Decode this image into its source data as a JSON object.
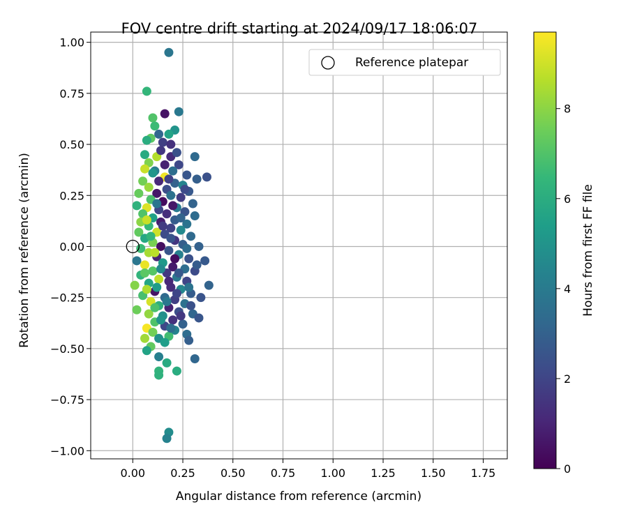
{
  "chart_data": {
    "type": "scatter",
    "title": "FOV centre drift starting at 2024/09/17 18:06:07",
    "xlabel": "Angular distance from reference (arcmin)",
    "ylabel": "Rotation from reference (arcmin)",
    "xlim": [
      -0.21,
      1.87
    ],
    "ylim": [
      -1.04,
      1.05
    ],
    "xticks": [
      0.0,
      0.25,
      0.5,
      0.75,
      1.0,
      1.25,
      1.5,
      1.75
    ],
    "xtick_labels": [
      "0.00",
      "0.25",
      "0.50",
      "0.75",
      "1.00",
      "1.25",
      "1.50",
      "1.75"
    ],
    "yticks": [
      -1.0,
      -0.75,
      -0.5,
      -0.25,
      0.0,
      0.25,
      0.5,
      0.75,
      1.0
    ],
    "ytick_labels": [
      "−1.00",
      "−0.75",
      "−0.50",
      "−0.25",
      "0.00",
      "0.25",
      "0.50",
      "0.75",
      "1.00"
    ],
    "grid": true,
    "legend": {
      "placement": "top-right",
      "entries": [
        {
          "label": "Reference platepar",
          "marker": "hollow-circle"
        }
      ]
    },
    "reference_point": {
      "x": 0.0,
      "y": 0.0
    },
    "colorbar": {
      "label": "Hours from first FF file",
      "colormap": "viridis",
      "range": [
        0,
        9.7
      ],
      "ticks": [
        0,
        2,
        4,
        6,
        8
      ],
      "tick_labels": [
        "0",
        "2",
        "4",
        "6",
        "8"
      ],
      "stops": [
        "#440154",
        "#482878",
        "#3e4a89",
        "#31688e",
        "#26828e",
        "#1f9e89",
        "#35b779",
        "#6ece58",
        "#b5de2b",
        "#fde725"
      ]
    },
    "series": [
      {
        "color_by": "hours",
        "points": [
          [
            0.18,
            0.95,
            3.8
          ],
          [
            0.07,
            0.76,
            6.4
          ],
          [
            0.16,
            0.65,
            0.5
          ],
          [
            0.23,
            0.66,
            3.9
          ],
          [
            0.1,
            0.63,
            7.0
          ],
          [
            0.11,
            0.59,
            6.6
          ],
          [
            0.21,
            0.57,
            5.0
          ],
          [
            0.13,
            0.55,
            3.2
          ],
          [
            0.18,
            0.55,
            5.6
          ],
          [
            0.09,
            0.53,
            7.2
          ],
          [
            0.07,
            0.52,
            6.0
          ],
          [
            0.15,
            0.51,
            1.8
          ],
          [
            0.19,
            0.5,
            1.4
          ],
          [
            0.31,
            0.44,
            3.3
          ],
          [
            0.06,
            0.45,
            5.9
          ],
          [
            0.12,
            0.44,
            8.6
          ],
          [
            0.19,
            0.44,
            1.2
          ],
          [
            0.08,
            0.41,
            7.8
          ],
          [
            0.16,
            0.4,
            0.9
          ],
          [
            0.23,
            0.4,
            2.1
          ],
          [
            0.06,
            0.38,
            8.9
          ],
          [
            0.11,
            0.37,
            4.1
          ],
          [
            0.2,
            0.37,
            3.5
          ],
          [
            0.27,
            0.35,
            2.6
          ],
          [
            0.37,
            0.34,
            2.4
          ],
          [
            0.16,
            0.34,
            9.5
          ],
          [
            0.32,
            0.33,
            2.9
          ],
          [
            0.05,
            0.32,
            7.6
          ],
          [
            0.13,
            0.32,
            1.1
          ],
          [
            0.21,
            0.31,
            3.0
          ],
          [
            0.25,
            0.3,
            4.4
          ],
          [
            0.08,
            0.29,
            8.2
          ],
          [
            0.17,
            0.28,
            2.3
          ],
          [
            0.28,
            0.27,
            2.7
          ],
          [
            0.03,
            0.26,
            7.4
          ],
          [
            0.12,
            0.26,
            0.6
          ],
          [
            0.19,
            0.25,
            3.6
          ],
          [
            0.24,
            0.24,
            1.7
          ],
          [
            0.09,
            0.23,
            6.9
          ],
          [
            0.15,
            0.22,
            0.3
          ],
          [
            0.3,
            0.21,
            3.1
          ],
          [
            0.02,
            0.2,
            6.2
          ],
          [
            0.07,
            0.19,
            9.2
          ],
          [
            0.22,
            0.19,
            4.0
          ],
          [
            0.13,
            0.18,
            2.0
          ],
          [
            0.26,
            0.17,
            2.5
          ],
          [
            0.05,
            0.16,
            7.0
          ],
          [
            0.17,
            0.16,
            1.3
          ],
          [
            0.31,
            0.15,
            3.4
          ],
          [
            0.1,
            0.14,
            5.5
          ],
          [
            0.21,
            0.13,
            2.8
          ],
          [
            0.04,
            0.12,
            8.0
          ],
          [
            0.14,
            0.12,
            0.8
          ],
          [
            0.27,
            0.11,
            3.7
          ],
          [
            0.08,
            0.1,
            6.5
          ],
          [
            0.19,
            0.09,
            1.9
          ],
          [
            0.24,
            0.08,
            4.6
          ],
          [
            0.03,
            0.07,
            7.3
          ],
          [
            0.12,
            0.07,
            9.0
          ],
          [
            0.16,
            0.06,
            2.2
          ],
          [
            0.29,
            0.05,
            3.3
          ],
          [
            0.06,
            0.04,
            5.8
          ],
          [
            0.21,
            0.03,
            1.5
          ],
          [
            0.1,
            0.02,
            7.7
          ],
          [
            0.25,
            0.01,
            2.9
          ],
          [
            0.14,
            0.0,
            0.4
          ],
          [
            0.33,
            0.0,
            3.0
          ],
          [
            0.04,
            -0.01,
            6.6
          ],
          [
            0.18,
            -0.02,
            2.6
          ],
          [
            0.08,
            -0.03,
            8.4
          ],
          [
            0.23,
            -0.04,
            4.2
          ],
          [
            0.12,
            -0.05,
            1.0
          ],
          [
            0.28,
            -0.06,
            2.4
          ],
          [
            0.02,
            -0.07,
            3.8
          ],
          [
            0.36,
            -0.07,
            2.7
          ],
          [
            0.15,
            -0.08,
            5.2
          ],
          [
            0.06,
            -0.09,
            9.4
          ],
          [
            0.2,
            -0.1,
            0.7
          ],
          [
            0.26,
            -0.11,
            3.5
          ],
          [
            0.1,
            -0.12,
            7.1
          ],
          [
            0.31,
            -0.12,
            2.2
          ],
          [
            0.17,
            -0.13,
            1.6
          ],
          [
            0.04,
            -0.14,
            6.3
          ],
          [
            0.22,
            -0.15,
            3.9
          ],
          [
            0.13,
            -0.16,
            8.8
          ],
          [
            0.27,
            -0.17,
            2.0
          ],
          [
            0.08,
            -0.18,
            5.7
          ],
          [
            0.38,
            -0.19,
            3.1
          ],
          [
            0.01,
            -0.19,
            7.9
          ],
          [
            0.19,
            -0.2,
            1.2
          ],
          [
            0.24,
            -0.21,
            4.5
          ],
          [
            0.11,
            -0.22,
            0.5
          ],
          [
            0.29,
            -0.23,
            2.8
          ],
          [
            0.05,
            -0.24,
            6.8
          ],
          [
            0.16,
            -0.25,
            3.3
          ],
          [
            0.34,
            -0.25,
            2.5
          ],
          [
            0.21,
            -0.26,
            1.8
          ],
          [
            0.09,
            -0.27,
            9.1
          ],
          [
            0.26,
            -0.28,
            3.6
          ],
          [
            0.13,
            -0.29,
            6.1
          ],
          [
            0.18,
            -0.3,
            0.9
          ],
          [
            0.02,
            -0.31,
            7.5
          ],
          [
            0.23,
            -0.32,
            2.3
          ],
          [
            0.08,
            -0.33,
            8.1
          ],
          [
            0.3,
            -0.33,
            3.2
          ],
          [
            0.15,
            -0.34,
            4.8
          ],
          [
            0.33,
            -0.35,
            2.6
          ],
          [
            0.2,
            -0.36,
            1.4
          ],
          [
            0.11,
            -0.37,
            7.0
          ],
          [
            0.25,
            -0.38,
            3.0
          ],
          [
            0.16,
            -0.39,
            2.1
          ],
          [
            0.07,
            -0.4,
            9.6
          ],
          [
            0.21,
            -0.41,
            4.3
          ],
          [
            0.1,
            -0.42,
            7.6
          ],
          [
            0.27,
            -0.43,
            3.4
          ],
          [
            0.18,
            -0.44,
            6.7
          ],
          [
            0.13,
            -0.45,
            4.9
          ],
          [
            0.06,
            -0.45,
            8.3
          ],
          [
            0.28,
            -0.46,
            2.9
          ],
          [
            0.16,
            -0.47,
            5.4
          ],
          [
            0.09,
            -0.49,
            7.3
          ],
          [
            0.07,
            -0.51,
            5.6
          ],
          [
            0.31,
            -0.55,
            3.2
          ],
          [
            0.13,
            -0.54,
            4.2
          ],
          [
            0.17,
            -0.57,
            5.9
          ],
          [
            0.13,
            -0.61,
            6.3
          ],
          [
            0.22,
            -0.61,
            6.0
          ],
          [
            0.13,
            -0.63,
            6.2
          ],
          [
            0.18,
            -0.91,
            4.7
          ],
          [
            0.17,
            -0.94,
            4.3
          ],
          [
            0.14,
            0.47,
            1.6
          ],
          [
            0.22,
            0.46,
            2.4
          ],
          [
            0.1,
            0.36,
            5.1
          ],
          [
            0.18,
            0.33,
            1.9
          ],
          [
            0.26,
            0.28,
            2.2
          ],
          [
            0.12,
            0.21,
            3.8
          ],
          [
            0.2,
            0.2,
            0.6
          ],
          [
            0.07,
            0.13,
            8.9
          ],
          [
            0.24,
            0.14,
            3.1
          ],
          [
            0.15,
            0.1,
            1.7
          ],
          [
            0.09,
            0.05,
            6.4
          ],
          [
            0.19,
            0.04,
            2.5
          ],
          [
            0.27,
            -0.01,
            3.4
          ],
          [
            0.11,
            -0.03,
            8.7
          ],
          [
            0.21,
            -0.06,
            0.3
          ],
          [
            0.32,
            -0.09,
            2.8
          ],
          [
            0.14,
            -0.11,
            4.6
          ],
          [
            0.06,
            -0.13,
            7.2
          ],
          [
            0.23,
            -0.13,
            2.7
          ],
          [
            0.18,
            -0.17,
            1.1
          ],
          [
            0.12,
            -0.2,
            5.3
          ],
          [
            0.28,
            -0.2,
            3.7
          ],
          [
            0.22,
            -0.23,
            2.0
          ],
          [
            0.07,
            -0.21,
            8.5
          ],
          [
            0.17,
            -0.27,
            3.9
          ],
          [
            0.29,
            -0.29,
            2.4
          ],
          [
            0.11,
            -0.3,
            6.9
          ],
          [
            0.24,
            -0.34,
            1.6
          ],
          [
            0.14,
            -0.36,
            5.0
          ],
          [
            0.19,
            -0.4,
            3.5
          ]
        ]
      }
    ]
  }
}
